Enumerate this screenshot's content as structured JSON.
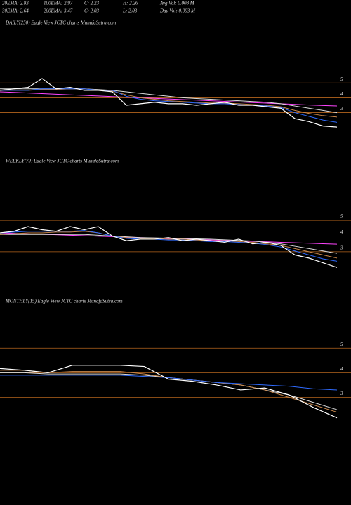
{
  "header": {
    "rows": [
      [
        "20EMA: 2.83",
        "100EMA: 2.97",
        "C: 2.23",
        "H: 2.26",
        "Avg Vol: 0.008  M"
      ],
      [
        "30EMA: 2.64",
        "200EMA: 3.47",
        "C: 2.03",
        "L: 2.03",
        "Day Vol: 0.093  M"
      ]
    ]
  },
  "chart_data": [
    {
      "type": "line",
      "title": "DAILY(250) Eagle  View  JCTC charts MunafaSutra.com",
      "categories": [
        null,
        null,
        null,
        null,
        null,
        null,
        null,
        null,
        null,
        null,
        null,
        null,
        null,
        null,
        null,
        null,
        null,
        null,
        null,
        null,
        null,
        null,
        null,
        null,
        null
      ],
      "ylim": [
        0.9,
        8.7
      ],
      "yticks": [
        3,
        4,
        5
      ],
      "grid": true,
      "grid_color": "#b5651d",
      "series": [
        {
          "color": "#ff44ff",
          "values": [
            4.4,
            4.36,
            4.32,
            4.28,
            4.24,
            4.2,
            4.16,
            4.12,
            4.08,
            4.04,
            4.0,
            3.96,
            3.92,
            3.88,
            3.84,
            3.8,
            3.76,
            3.72,
            3.68,
            3.64,
            3.6,
            3.56,
            3.52,
            3.48,
            3.45
          ]
        },
        {
          "color": "#dddddd",
          "values": [
            4.6,
            4.6,
            4.6,
            4.6,
            4.6,
            4.6,
            4.6,
            4.55,
            4.5,
            4.4,
            4.3,
            4.2,
            4.1,
            4.0,
            3.95,
            3.9,
            3.85,
            3.8,
            3.75,
            3.7,
            3.6,
            3.45,
            3.3,
            3.15,
            3.0
          ]
        },
        {
          "color": "#c8864a",
          "values": [
            4.5,
            4.5,
            4.5,
            4.55,
            4.55,
            4.6,
            4.6,
            4.5,
            4.45,
            4.2,
            4.0,
            3.9,
            3.8,
            3.75,
            3.7,
            3.65,
            3.65,
            3.6,
            3.55,
            3.5,
            3.4,
            3.15,
            2.95,
            2.8,
            2.7
          ]
        },
        {
          "color": "#2f6bff",
          "values": [
            4.5,
            4.5,
            4.5,
            4.6,
            4.6,
            4.6,
            4.6,
            4.5,
            4.5,
            4.1,
            3.9,
            3.8,
            3.75,
            3.7,
            3.65,
            3.6,
            3.6,
            3.55,
            3.5,
            3.45,
            3.35,
            3.0,
            2.75,
            2.5,
            2.35
          ]
        },
        {
          "color": "#ffffff",
          "values": [
            4.5,
            4.6,
            4.7,
            5.3,
            4.6,
            4.7,
            4.5,
            4.5,
            4.4,
            3.5,
            3.6,
            3.7,
            3.6,
            3.6,
            3.5,
            3.6,
            3.7,
            3.5,
            3.5,
            3.4,
            3.3,
            2.6,
            2.4,
            2.1,
            2.03
          ]
        }
      ]
    },
    {
      "type": "line",
      "title": "WEEKLY(79) Eagle  View  JCTC charts MunafaSutra.com",
      "categories": [
        null,
        null,
        null,
        null,
        null,
        null,
        null,
        null,
        null,
        null,
        null,
        null,
        null,
        null,
        null,
        null,
        null,
        null,
        null,
        null,
        null,
        null,
        null,
        null,
        null
      ],
      "ylim": [
        0.5,
        8.3
      ],
      "yticks": [
        3,
        4,
        5
      ],
      "grid": true,
      "grid_color": "#b5651d",
      "series": [
        {
          "color": "#ff44ff",
          "values": [
            4.2,
            4.17,
            4.14,
            4.11,
            4.08,
            4.05,
            4.02,
            3.99,
            3.96,
            3.93,
            3.9,
            3.87,
            3.84,
            3.81,
            3.78,
            3.75,
            3.72,
            3.69,
            3.66,
            3.63,
            3.6,
            3.57,
            3.54,
            3.51,
            3.48
          ]
        },
        {
          "color": "#dddddd",
          "values": [
            4.1,
            4.1,
            4.1,
            4.1,
            4.1,
            4.1,
            4.1,
            4.05,
            4.0,
            3.95,
            3.9,
            3.88,
            3.86,
            3.84,
            3.82,
            3.8,
            3.76,
            3.72,
            3.68,
            3.6,
            3.5,
            3.35,
            3.2,
            3.05,
            2.9
          ]
        },
        {
          "color": "#c8864a",
          "values": [
            4.1,
            4.15,
            4.2,
            4.2,
            4.25,
            4.25,
            4.3,
            4.2,
            4.0,
            3.9,
            3.85,
            3.85,
            3.8,
            3.8,
            3.75,
            3.7,
            3.7,
            3.65,
            3.6,
            3.5,
            3.4,
            3.2,
            3.0,
            2.8,
            2.6
          ]
        },
        {
          "color": "#2f6bff",
          "values": [
            4.2,
            4.25,
            4.3,
            4.3,
            4.3,
            4.3,
            4.35,
            4.2,
            4.0,
            3.85,
            3.8,
            3.8,
            3.75,
            3.75,
            3.7,
            3.65,
            3.65,
            3.6,
            3.55,
            3.45,
            3.3,
            3.05,
            2.8,
            2.55,
            2.4
          ]
        },
        {
          "color": "#ffffff",
          "values": [
            4.2,
            4.3,
            4.6,
            4.4,
            4.3,
            4.6,
            4.4,
            4.6,
            4.0,
            3.7,
            3.8,
            3.8,
            3.9,
            3.7,
            3.8,
            3.7,
            3.6,
            3.8,
            3.5,
            3.6,
            3.4,
            2.8,
            2.6,
            2.3,
            2.0
          ]
        }
      ]
    },
    {
      "type": "line",
      "title": "MONTHLY(15) Eagle  View  JCTC charts MunafaSutra.com",
      "categories": [
        null,
        null,
        null,
        null,
        null,
        null,
        null,
        null,
        null,
        null,
        null,
        null,
        null,
        null,
        null
      ],
      "ylim": [
        -0.8,
        6.6
      ],
      "yticks": [
        3,
        4,
        5
      ],
      "grid": true,
      "grid_color": "#b5651d",
      "series": [
        {
          "color": "#dddddd",
          "values": [
            4.0,
            4.0,
            3.95,
            3.95,
            3.95,
            3.95,
            3.9,
            3.8,
            3.7,
            3.6,
            3.5,
            3.3,
            3.1,
            2.8,
            2.5
          ]
        },
        {
          "color": "#c8864a",
          "values": [
            4.1,
            4.1,
            4.0,
            4.05,
            4.05,
            4.05,
            3.95,
            3.8,
            3.7,
            3.6,
            3.5,
            3.3,
            3.0,
            2.7,
            2.4
          ]
        },
        {
          "color": "#2f6bff",
          "values": [
            3.9,
            3.9,
            3.9,
            3.9,
            3.9,
            3.9,
            3.85,
            3.8,
            3.7,
            3.6,
            3.55,
            3.5,
            3.45,
            3.35,
            3.3
          ]
        },
        {
          "color": "#ffffff",
          "values": [
            4.17,
            4.1,
            4.0,
            4.3,
            4.3,
            4.3,
            4.25,
            3.74,
            3.65,
            3.5,
            3.3,
            3.38,
            3.1,
            2.6,
            2.17
          ]
        }
      ]
    }
  ]
}
